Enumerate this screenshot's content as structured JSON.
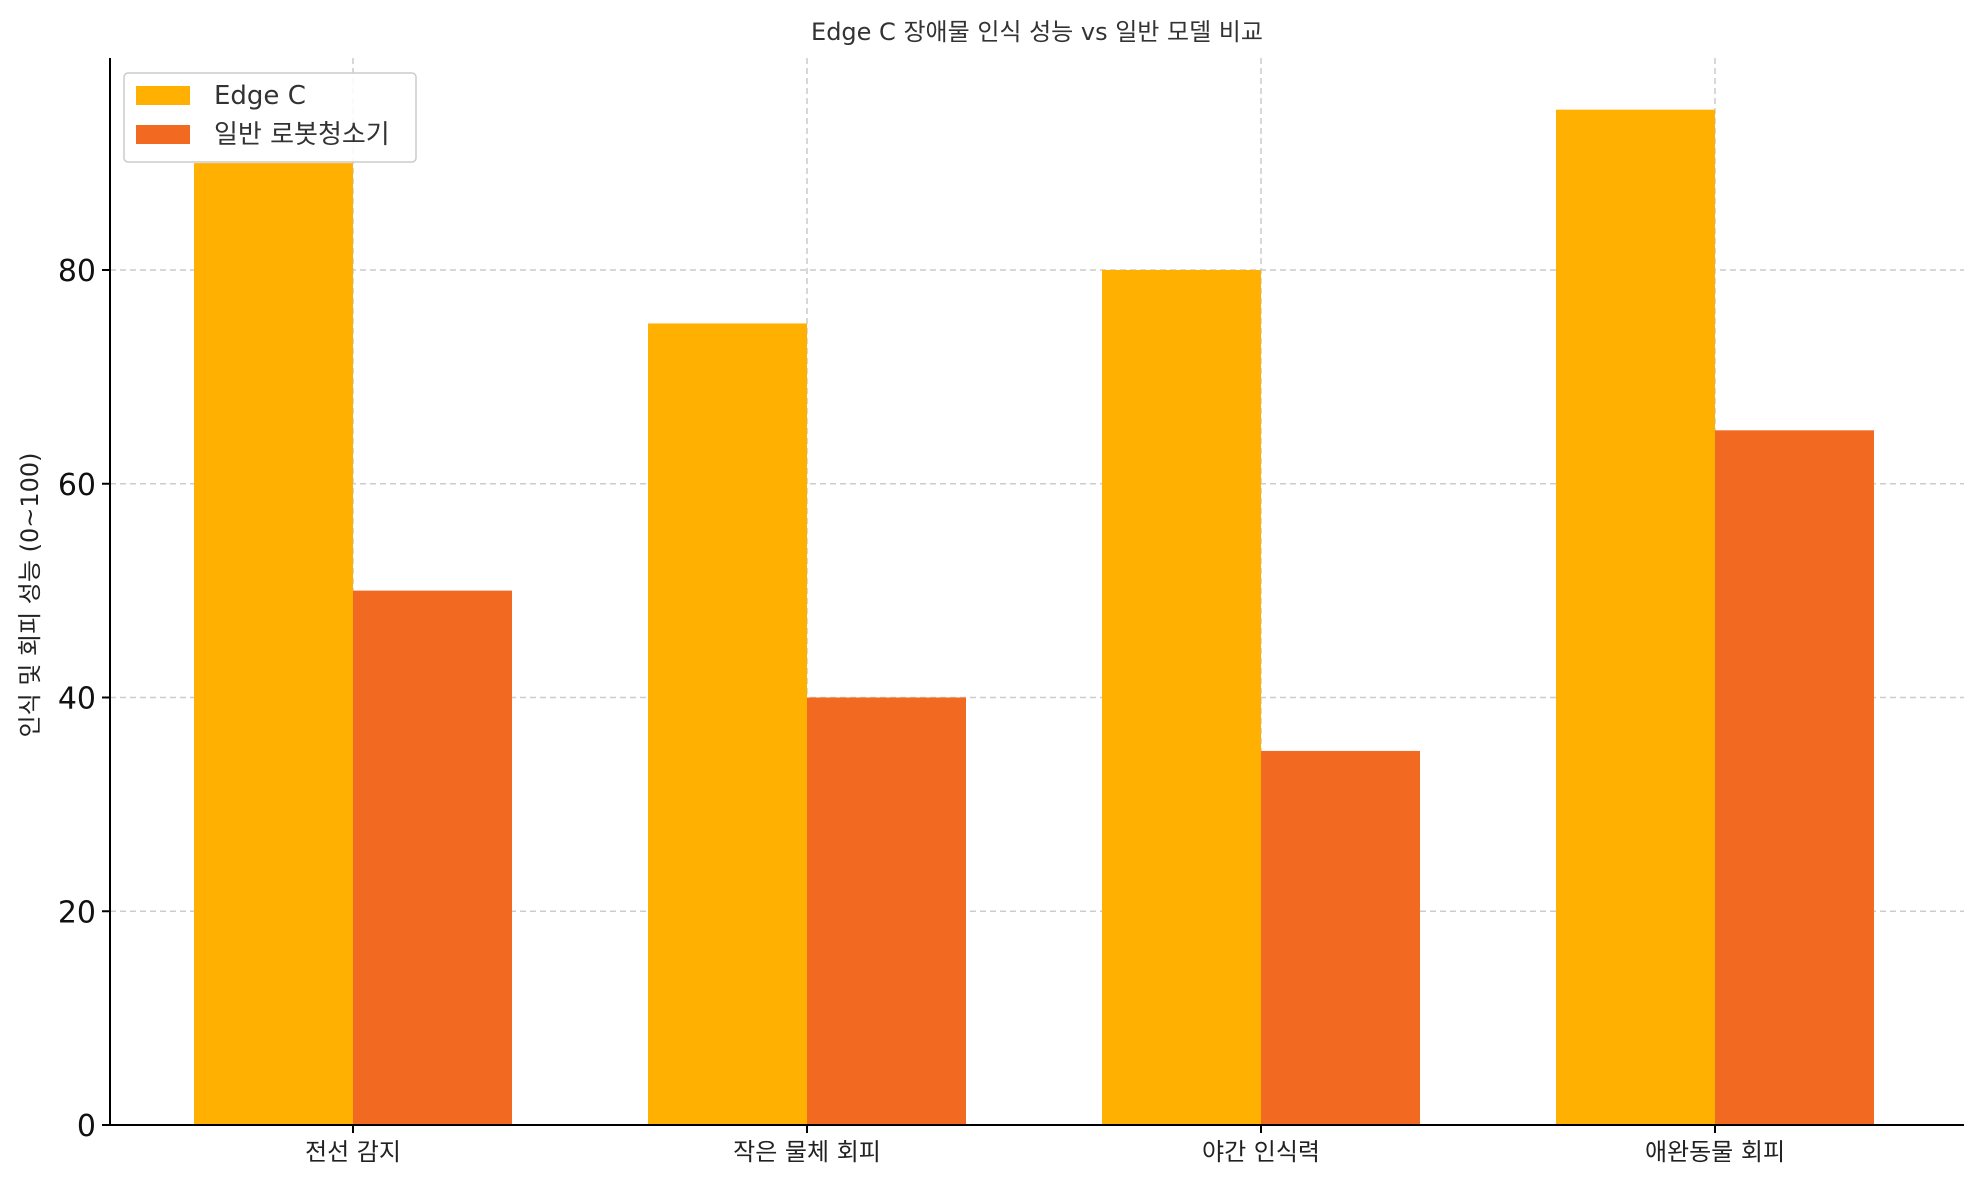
{
  "chart_data": {
    "type": "bar",
    "title": "Edge C 장애물 인식 성능 vs 일반 모델 비교",
    "xlabel": "",
    "ylabel": "인식 및 회피 성능 (0~100)",
    "categories": [
      "전선 감지",
      "작은 물체 회피",
      "야간 인식력",
      "애완동물 회피"
    ],
    "series": [
      {
        "name": "Edge C",
        "values": [
          90,
          75,
          80,
          95
        ],
        "color": "#FFB000"
      },
      {
        "name": "일반 로봇청소기",
        "values": [
          50,
          40,
          35,
          65
        ],
        "color": "#F26A22"
      }
    ],
    "ylim": [
      0,
      100
    ],
    "yticks": [
      0,
      20,
      40,
      60,
      80
    ],
    "grid": true,
    "legend_position": "top-left"
  }
}
